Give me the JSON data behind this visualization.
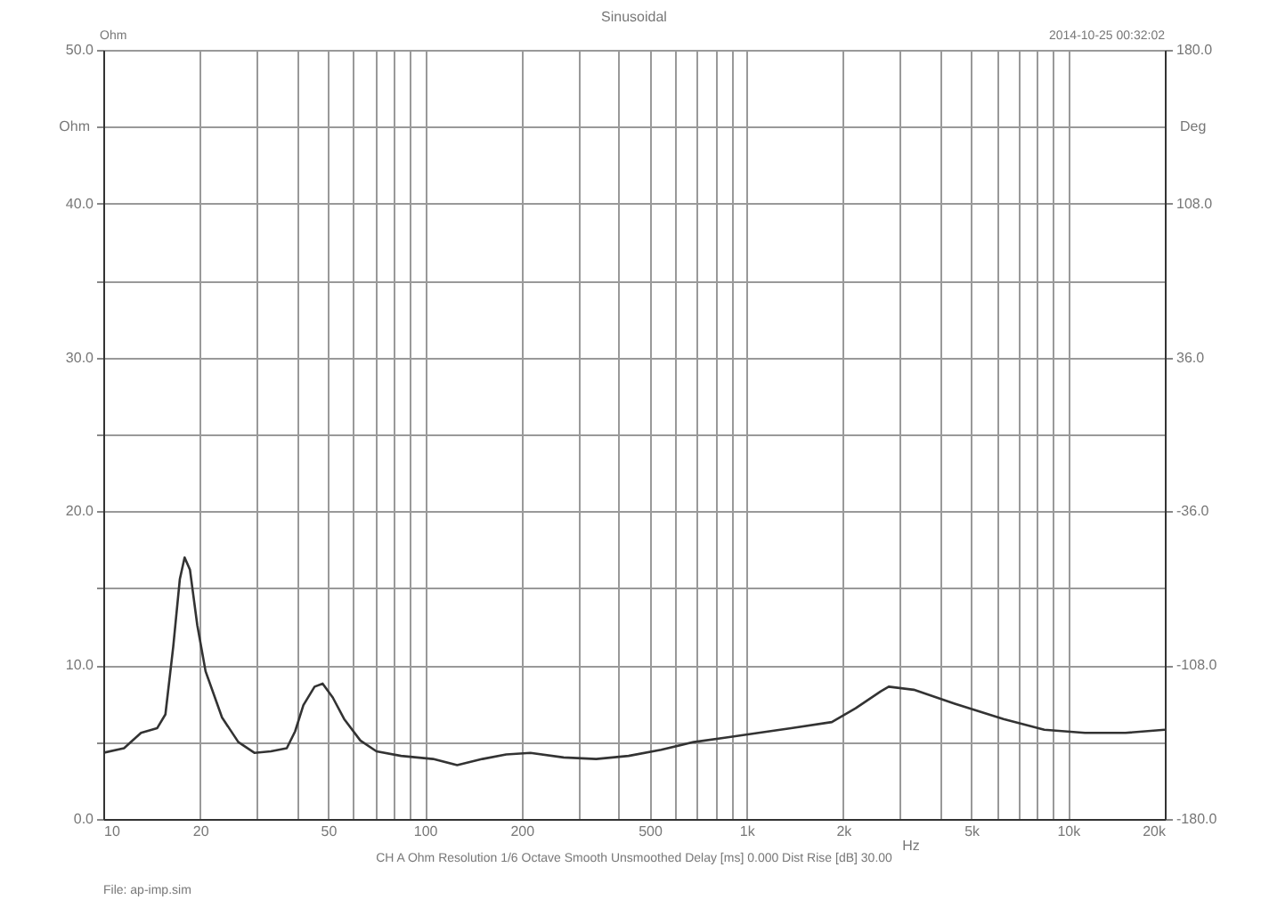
{
  "chart_data": {
    "type": "line",
    "title": "Sinusoidal",
    "xlabel": "Hz",
    "ylabel": "Ohm",
    "y2label": "Deg",
    "annotations": [
      "Ohm",
      "2014-10-25 00:32:02",
      "CH A  Ohm  Resolution 1/6 Octave  Smooth Unsmoothed  Delay [ms] 0.000  Dist Rise [dB] 30.00",
      "File: ap-imp.sim"
    ],
    "log": "x",
    "grid": true,
    "legend": false,
    "marker": "none",
    "line_style": "solid",
    "xlim": [
      10,
      20000
    ],
    "ylim": [
      0,
      50
    ],
    "y2lim": [
      -180,
      180
    ],
    "xticks": [
      10,
      20,
      {
        "value": 30,
        "label": null
      },
      {
        "value": 40,
        "label": null
      },
      50,
      {
        "value": 60,
        "label": null
      },
      {
        "value": 70,
        "label": null
      },
      {
        "value": 80,
        "label": null
      },
      {
        "value": 90,
        "label": null
      },
      100,
      200,
      {
        "value": 300,
        "label": null
      },
      {
        "value": 400,
        "label": null
      },
      500,
      {
        "value": 600,
        "label": null
      },
      {
        "value": 700,
        "label": null
      },
      {
        "value": 800,
        "label": null
      },
      {
        "value": 900,
        "label": null
      },
      {
        "value": 1000,
        "label": "1k"
      },
      {
        "value": 2000,
        "label": "2k"
      },
      {
        "value": 3000,
        "label": null
      },
      {
        "value": 4000,
        "label": null
      },
      {
        "value": 5000,
        "label": "5k"
      },
      {
        "value": 6000,
        "label": null
      },
      {
        "value": 7000,
        "label": null
      },
      {
        "value": 8000,
        "label": null
      },
      {
        "value": 9000,
        "label": null
      },
      {
        "value": 10000,
        "label": "10k"
      },
      {
        "value": 20000,
        "label": "20k"
      }
    ],
    "yticks": [
      {
        "value": 0,
        "label": "0.0"
      },
      {
        "value": 5,
        "label": null
      },
      {
        "value": 10,
        "label": "10.0"
      },
      {
        "value": 15,
        "label": null
      },
      {
        "value": 20,
        "label": "20.0"
      },
      {
        "value": 25,
        "label": null
      },
      {
        "value": 30,
        "label": "30.0"
      },
      {
        "value": 35,
        "label": null
      },
      {
        "value": 40,
        "label": "40.0"
      },
      {
        "value": 45,
        "label": null
      },
      {
        "value": 50,
        "label": "50.0"
      }
    ],
    "y2ticks": [
      {
        "value": -180,
        "label": "-180.0"
      },
      {
        "value": -108,
        "label": "-108.0"
      },
      {
        "value": -36,
        "label": "-36.0"
      },
      {
        "value": 36,
        "label": "36.0"
      },
      {
        "value": 108,
        "label": "108.0"
      },
      {
        "value": 180,
        "label": "180.0"
      }
    ],
    "series": [
      {
        "color": "#333333",
        "x": [
          10,
          11.6,
          13.1,
          14.7,
          15.6,
          16.5,
          17.3,
          17.9,
          18.6,
          19.6,
          20.8,
          23.4,
          26.3,
          29.5,
          33.2,
          37.2,
          39.5,
          41.9,
          45.4,
          48.1,
          51.7,
          56.1,
          63,
          70.7,
          84.3,
          106,
          126,
          151,
          179,
          213,
          270,
          341,
          430,
          543,
          685,
          865,
          1090,
          1377,
          1843,
          2185,
          2616,
          2770,
          3314,
          4443,
          6301,
          8438,
          11290,
          15100,
          20000
        ],
        "values": [
          4.3,
          4.6,
          5.6,
          5.9,
          6.8,
          11.2,
          15.6,
          17.0,
          16.2,
          12.6,
          9.6,
          6.6,
          5.0,
          4.3,
          4.4,
          4.6,
          5.7,
          7.4,
          8.6,
          8.8,
          7.9,
          6.5,
          5.1,
          4.4,
          4.1,
          3.9,
          3.5,
          3.9,
          4.2,
          4.3,
          4.0,
          3.9,
          4.1,
          4.5,
          5.0,
          5.3,
          5.6,
          5.9,
          6.3,
          7.2,
          8.3,
          8.6,
          8.4,
          7.5,
          6.5,
          5.8,
          5.6,
          5.6,
          5.8
        ]
      }
    ]
  }
}
